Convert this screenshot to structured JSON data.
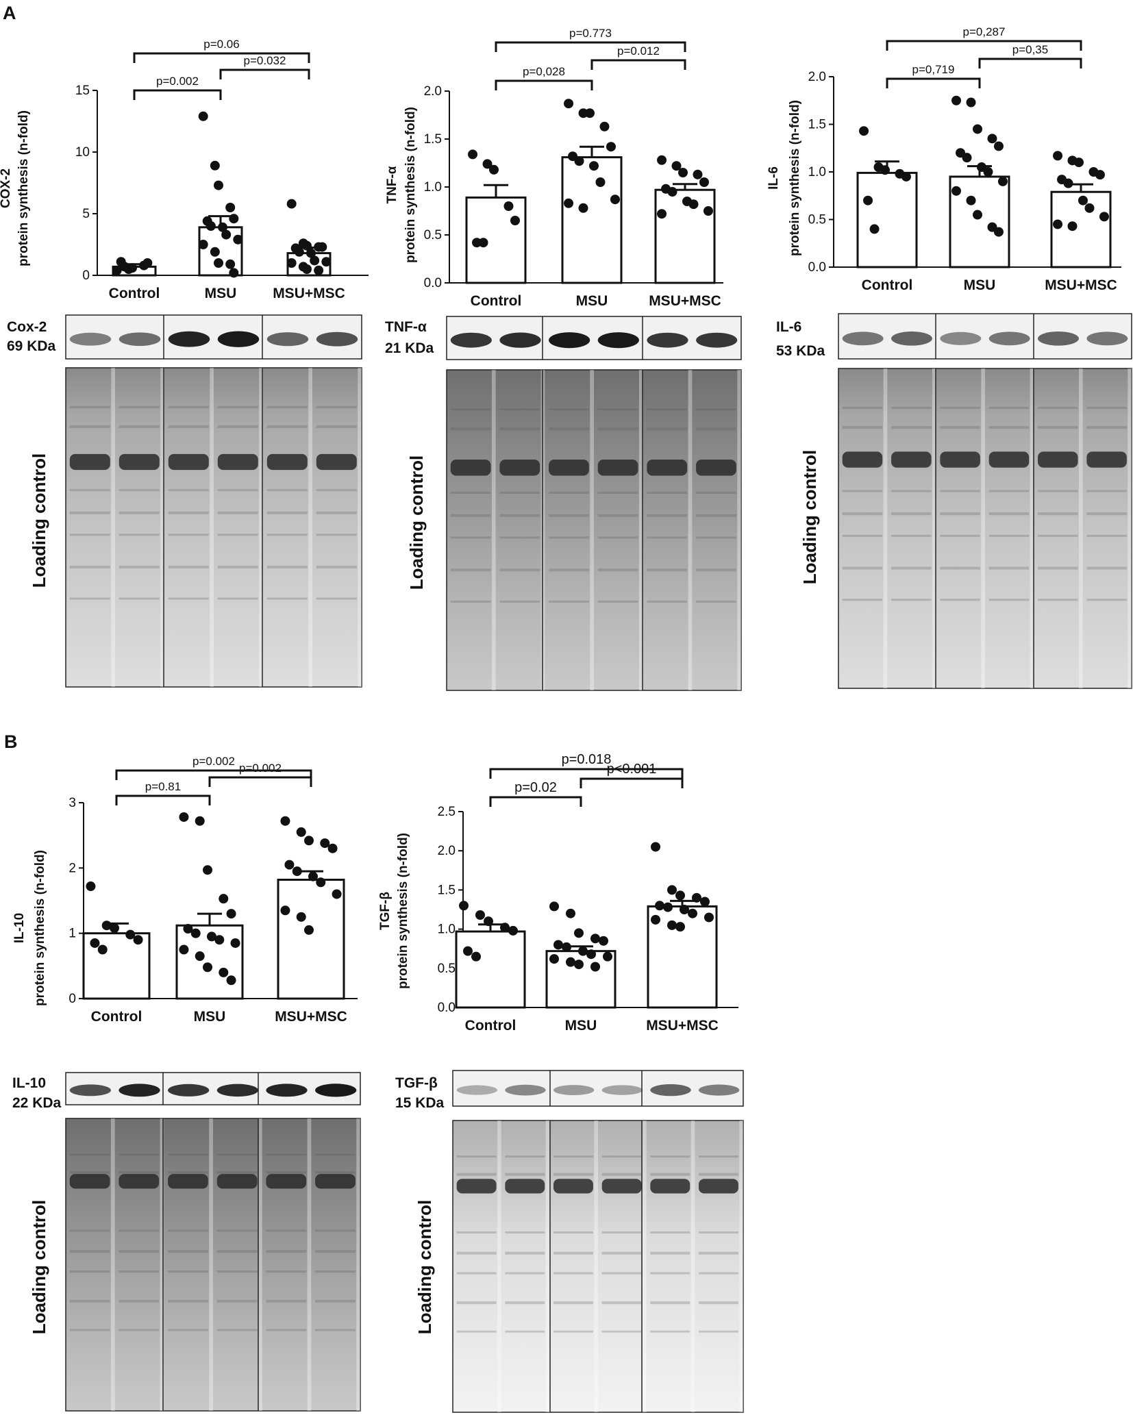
{
  "panels": {
    "a": "A",
    "b": "B"
  },
  "categories": [
    "Control",
    "MSU",
    "MSU+MSC"
  ],
  "loading_control_label": "Loading control",
  "chart_data": [
    {
      "type": "bar",
      "id": "cox2",
      "ylabel_line1": "COX-2",
      "ylabel_line2": "protein synthesis (n-fold)",
      "ylim": [
        0,
        15
      ],
      "yticks": [
        "0",
        "5",
        "10",
        "15"
      ],
      "ytick_values": [
        0,
        5,
        10,
        15
      ],
      "categories": [
        "Control",
        "MSU",
        "MSU+MSC"
      ],
      "values": [
        0.7,
        3.9,
        1.8
      ],
      "errors": [
        0.2,
        0.9,
        0.45
      ],
      "points": [
        [
          0.4,
          0.5,
          0.6,
          0.8,
          1.0,
          1.1,
          0.7
        ],
        [
          12.9,
          8.9,
          7.3,
          5.5,
          4.6,
          4.4,
          4.0,
          3.9,
          3.3,
          2.9,
          2.5,
          1.9,
          1.0,
          0.9,
          0.2
        ],
        [
          5.8,
          2.6,
          2.4,
          2.3,
          2.3,
          2.2,
          1.9,
          1.8,
          1.2,
          1.1,
          1.0,
          0.7,
          0.5,
          0.4
        ]
      ],
      "brackets": [
        {
          "from": 0,
          "to": 1,
          "label": "p=0.002"
        },
        {
          "from": 1,
          "to": 2,
          "label": "p=0.032"
        },
        {
          "from": 0,
          "to": 2,
          "label": "p=0.06"
        }
      ]
    },
    {
      "type": "bar",
      "id": "tnfa",
      "ylabel_line1": "TNF-α",
      "ylabel_line2": "protein synthesis (n-fold)",
      "ylim": [
        0,
        2.0
      ],
      "yticks": [
        "0.0",
        "0.5",
        "1.0",
        "1.5",
        "2.0"
      ],
      "ytick_values": [
        0,
        0.5,
        1.0,
        1.5,
        2.0
      ],
      "categories": [
        "Control",
        "MSU",
        "MSU+MSC"
      ],
      "values": [
        0.89,
        1.31,
        0.97
      ],
      "errors": [
        0.13,
        0.11,
        0.06
      ],
      "points": [
        [
          1.34,
          1.24,
          1.18,
          0.8,
          0.65,
          0.42,
          0.42
        ],
        [
          1.87,
          1.77,
          1.77,
          1.63,
          1.42,
          1.32,
          1.27,
          1.22,
          1.05,
          0.87,
          0.83,
          0.78
        ],
        [
          1.28,
          1.22,
          1.15,
          1.13,
          1.05,
          0.98,
          0.95,
          0.85,
          0.82,
          0.75,
          0.72
        ]
      ],
      "brackets": [
        {
          "from": 0,
          "to": 1,
          "label": "p=0,028"
        },
        {
          "from": 1,
          "to": 2,
          "label": "p=0.012"
        },
        {
          "from": 0,
          "to": 2,
          "label": "p=0.773"
        }
      ]
    },
    {
      "type": "bar",
      "id": "il6",
      "ylabel_line1": "IL-6",
      "ylabel_line2": "protein synthesis (n-fold)",
      "ylim": [
        0,
        2.0
      ],
      "yticks": [
        "0.0",
        "0.5",
        "1.0",
        "1.5",
        "2.0"
      ],
      "ytick_values": [
        0,
        0.5,
        1.0,
        1.5,
        2.0
      ],
      "categories": [
        "Control",
        "MSU",
        "MSU+MSC"
      ],
      "values": [
        0.99,
        0.95,
        0.79
      ],
      "errors": [
        0.12,
        0.11,
        0.08
      ],
      "points": [
        [
          1.43,
          1.05,
          1.02,
          0.98,
          0.95,
          0.7,
          0.4
        ],
        [
          1.75,
          1.73,
          1.45,
          1.35,
          1.27,
          1.2,
          1.15,
          1.05,
          1.0,
          0.9,
          0.8,
          0.7,
          0.55,
          0.42,
          0.37
        ],
        [
          1.17,
          1.12,
          1.1,
          1.0,
          0.97,
          0.92,
          0.88,
          0.7,
          0.62,
          0.53,
          0.45,
          0.43
        ]
      ],
      "brackets": [
        {
          "from": 0,
          "to": 1,
          "label": "p=0,719"
        },
        {
          "from": 1,
          "to": 2,
          "label": "p=0,35"
        },
        {
          "from": 0,
          "to": 2,
          "label": "p=0,287"
        }
      ]
    },
    {
      "type": "bar",
      "id": "il10",
      "ylabel_line1": "IL-10",
      "ylabel_line2": "protein synthesis (n-fold)",
      "ylim": [
        0,
        3
      ],
      "yticks": [
        "0",
        "1",
        "2",
        "3"
      ],
      "ytick_values": [
        0,
        1,
        2,
        3
      ],
      "categories": [
        "Control",
        "MSU",
        "MSU+MSC"
      ],
      "values": [
        1.0,
        1.12,
        1.82
      ],
      "errors": [
        0.15,
        0.18,
        0.13
      ],
      "points": [
        [
          1.72,
          1.12,
          1.08,
          0.98,
          0.9,
          0.85,
          0.75
        ],
        [
          2.78,
          2.72,
          1.97,
          1.53,
          1.3,
          1.07,
          1.0,
          0.95,
          0.9,
          0.85,
          0.75,
          0.65,
          0.48,
          0.4,
          0.28
        ],
        [
          2.72,
          2.55,
          2.42,
          2.38,
          2.3,
          2.05,
          1.95,
          1.87,
          1.78,
          1.6,
          1.35,
          1.25,
          1.05
        ]
      ],
      "brackets": [
        {
          "from": 0,
          "to": 1,
          "label": "p=0.81"
        },
        {
          "from": 1,
          "to": 2,
          "label": "p=0.002"
        },
        {
          "from": 0,
          "to": 2,
          "label": "p=0.002"
        }
      ]
    },
    {
      "type": "bar",
      "id": "tgfb",
      "ylabel_line1": "TGF-β",
      "ylabel_line2": "protein synthesis (n-fold)",
      "ylim": [
        0,
        2.5
      ],
      "yticks": [
        "0.0",
        "0.5",
        "1.0",
        "1.5",
        "2.0",
        "2.5"
      ],
      "ytick_values": [
        0,
        0.5,
        1.0,
        1.5,
        2.0,
        2.5
      ],
      "categories": [
        "Control",
        "MSU",
        "MSU+MSC"
      ],
      "values": [
        0.97,
        0.72,
        1.29
      ],
      "errors": [
        0.09,
        0.06,
        0.07
      ],
      "points": [
        [
          1.3,
          1.18,
          1.1,
          1.02,
          0.98,
          0.72,
          0.65
        ],
        [
          1.29,
          1.2,
          0.95,
          0.88,
          0.85,
          0.8,
          0.77,
          0.72,
          0.68,
          0.65,
          0.62,
          0.58,
          0.55,
          0.52
        ],
        [
          2.05,
          1.5,
          1.43,
          1.4,
          1.35,
          1.3,
          1.28,
          1.25,
          1.2,
          1.15,
          1.12,
          1.05,
          1.03
        ]
      ],
      "brackets": [
        {
          "from": 0,
          "to": 1,
          "label": "p=0.02"
        },
        {
          "from": 1,
          "to": 2,
          "label": "p<0.001"
        },
        {
          "from": 0,
          "to": 2,
          "label": "p=0.018"
        }
      ]
    }
  ],
  "blots": [
    {
      "id": "cox2",
      "label_line1": "Cox-2",
      "label_line2": "69 KDa"
    },
    {
      "id": "tnfa",
      "label_line1": "TNF-α",
      "label_line2": "21 KDa"
    },
    {
      "id": "il6",
      "label_line1": "IL-6",
      "label_line2": "53 KDa"
    },
    {
      "id": "il10",
      "label_line1": "IL-10",
      "label_line2": "22 KDa"
    },
    {
      "id": "tgfb",
      "label_line1": "TGF-β",
      "label_line2": "15 KDa"
    }
  ],
  "colors": {
    "ink": "#111111",
    "band": "#1a1a1a",
    "gel_bg": "#bfbfbf"
  }
}
